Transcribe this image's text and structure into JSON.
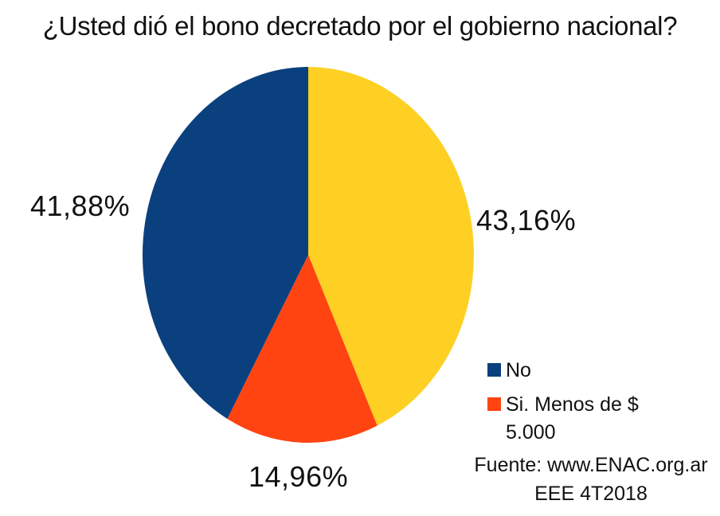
{
  "chart_data": {
    "type": "pie",
    "title": "¿Usted dió el bono decretado por el gobierno nacional?",
    "slices": [
      {
        "label": "",
        "value": 43.16,
        "value_label": "43,16%",
        "color": "#FDD023"
      },
      {
        "label": "Si. Menos de $ 5.000",
        "value": 14.96,
        "value_label": "14,96%",
        "color": "#FF4412"
      },
      {
        "label": "No",
        "value": 41.88,
        "value_label": "41,88%",
        "color": "#0B407F"
      }
    ],
    "legend": {
      "placement": "bottom-right",
      "entries": [
        {
          "label": "No",
          "color": "#0B407F"
        },
        {
          "label": "Si. Menos de $ 5.000",
          "color": "#FF4412"
        }
      ]
    },
    "source": "Fuente: www.ENAC.org.ar",
    "source_note": "EEE 4T2018"
  }
}
